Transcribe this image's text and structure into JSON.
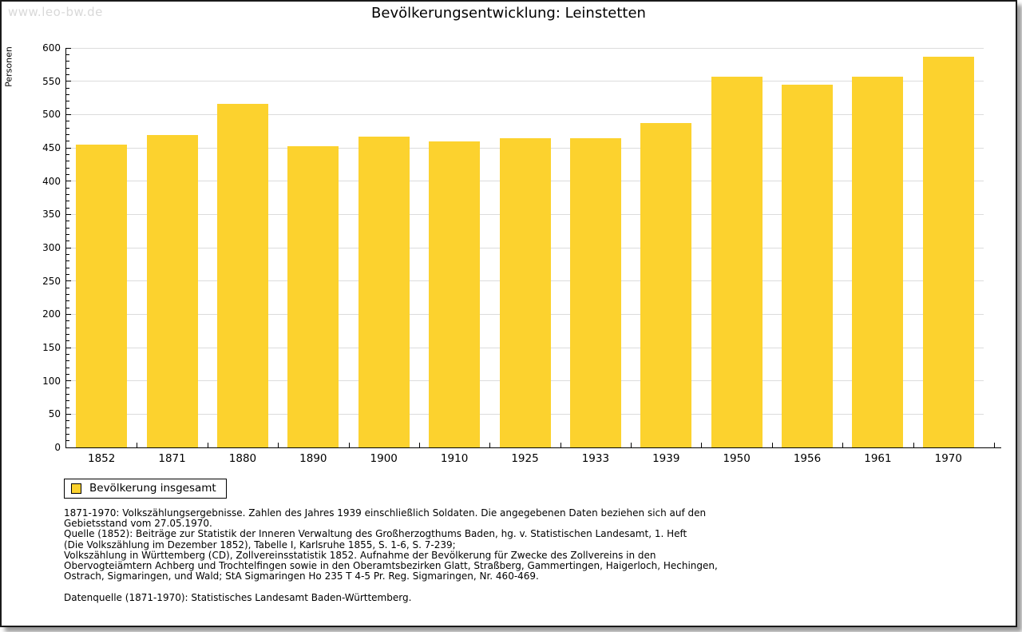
{
  "page": {
    "watermark": "www.leo-bw.de",
    "title": "Bevölkerungsentwicklung: Leinstetten"
  },
  "chart_data": {
    "type": "bar",
    "title": "Bevölkerungsentwicklung: Leinstetten",
    "xlabel": "",
    "ylabel": "Personen",
    "categories": [
      "1852",
      "1871",
      "1880",
      "1890",
      "1900",
      "1910",
      "1925",
      "1933",
      "1939",
      "1950",
      "1956",
      "1961",
      "1970"
    ],
    "values": [
      455,
      469,
      516,
      453,
      467,
      460,
      465,
      464,
      487,
      557,
      545,
      557,
      587
    ],
    "ylim": [
      0,
      600
    ],
    "ytick_step": 50,
    "minor_tick_step": 10,
    "grid": true,
    "legend_position": "bottom-left",
    "bar_color": "#fcd22e",
    "gridline_color": "#dcdcdc",
    "legend": {
      "label": "Bevölkerung insgesamt"
    }
  },
  "footnotes": {
    "lines": [
      "1871-1970: Volkszählungsergebnisse. Zahlen des Jahres 1939 einschließlich Soldaten. Die angegebenen Daten beziehen sich auf den",
      "Gebietsstand vom 27.05.1970.",
      "Quelle (1852): Beiträge zur Statistik der Inneren Verwaltung des Großherzogthums Baden, hg. v. Statistischen Landesamt, 1. Heft",
      "(Die Volkszählung im Dezember 1852), Tabelle I, Karlsruhe 1855, S. 1-6, S. 7-239;",
      "Volkszählung in Württemberg (CD), Zollvereinsstatistik 1852. Aufnahme der Bevölkerung für Zwecke des Zollvereins in den",
      "Obervogteiämtern Achberg und Trochtelfingen sowie in den Oberamtsbezirken Glatt, Straßberg, Gammertingen, Haigerloch, Hechingen,",
      "Ostrach, Sigmaringen, und Wald; StA Sigmaringen Ho 235 T 4-5 Pr. Reg. Sigmaringen, Nr. 460-469."
    ],
    "datasource": "Datenquelle (1871-1970): Statistisches Landesamt Baden-Württemberg."
  }
}
